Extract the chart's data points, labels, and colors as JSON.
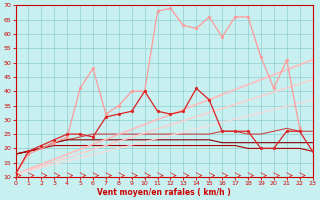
{
  "xlabel": "Vent moyen/en rafales ( km/h )",
  "xlim": [
    0,
    23
  ],
  "ylim": [
    10,
    70
  ],
  "yticks": [
    10,
    15,
    20,
    25,
    30,
    35,
    40,
    45,
    50,
    55,
    60,
    65,
    70
  ],
  "xticks": [
    0,
    1,
    2,
    3,
    4,
    5,
    6,
    7,
    8,
    9,
    10,
    11,
    12,
    13,
    14,
    15,
    16,
    17,
    18,
    19,
    20,
    21,
    22,
    23
  ],
  "bg_color": "#c8f0f0",
  "grid_color": "#90d0d0",
  "series": [
    {
      "x": [
        0,
        1,
        2,
        3,
        4,
        5,
        6,
        7,
        8,
        9,
        10,
        11,
        12,
        13,
        14,
        15,
        16,
        17,
        18,
        19,
        20,
        21,
        22
      ],
      "y": [
        11,
        18,
        20,
        22,
        24,
        41,
        48,
        32,
        35,
        40,
        40,
        68,
        69,
        63,
        62,
        66,
        59,
        66,
        66,
        52,
        41,
        51,
        27
      ],
      "color": "#ff9999",
      "marker": "o",
      "markersize": 2.0,
      "linewidth": 0.9
    },
    {
      "x": [
        0,
        1,
        2,
        3,
        4,
        5,
        6,
        7,
        8,
        9,
        10,
        11,
        12,
        13,
        14,
        15,
        16,
        17,
        18,
        19,
        20,
        21,
        22,
        23
      ],
      "y": [
        11,
        19,
        21,
        23,
        25,
        25,
        24,
        31,
        32,
        33,
        40,
        33,
        32,
        33,
        41,
        37,
        26,
        26,
        26,
        20,
        20,
        26,
        26,
        19
      ],
      "color": "#dd2222",
      "marker": "o",
      "markersize": 2.0,
      "linewidth": 0.9
    },
    {
      "x": [
        0,
        1,
        2,
        3,
        4,
        5,
        6,
        7,
        8,
        9,
        10,
        11,
        12,
        13,
        14,
        15,
        16,
        17,
        18,
        19,
        20,
        21,
        22,
        23
      ],
      "y": [
        18,
        19,
        20,
        22,
        23,
        24,
        25,
        25,
        25,
        25,
        25,
        25,
        25,
        25,
        25,
        25,
        26,
        26,
        25,
        25,
        26,
        27,
        26,
        26
      ],
      "color": "#cc4444",
      "marker": null,
      "markersize": 0,
      "linewidth": 0.8
    },
    {
      "x": [
        0,
        1,
        2,
        3,
        4,
        5,
        6,
        7,
        8,
        9,
        10,
        11,
        12,
        13,
        14,
        15,
        16,
        17,
        18,
        19,
        20,
        21,
        22,
        23
      ],
      "y": [
        18,
        19,
        20,
        22,
        23,
        23,
        23,
        23,
        23,
        23,
        23,
        23,
        23,
        23,
        23,
        23,
        22,
        22,
        22,
        22,
        22,
        22,
        22,
        22
      ],
      "color": "#880000",
      "marker": null,
      "markersize": 0,
      "linewidth": 0.8
    },
    {
      "x": [
        0,
        1,
        2,
        3,
        4,
        5,
        6,
        7,
        8,
        9,
        10,
        11,
        12,
        13,
        14,
        15,
        16,
        17,
        18,
        19,
        20,
        21,
        22,
        23
      ],
      "y": [
        18,
        19,
        20,
        21,
        21,
        21,
        21,
        21,
        21,
        21,
        21,
        21,
        21,
        21,
        21,
        21,
        21,
        21,
        20,
        20,
        20,
        20,
        20,
        19
      ],
      "color": "#aa0000",
      "marker": null,
      "markersize": 0,
      "linewidth": 0.8
    },
    {
      "x": [
        0,
        23
      ],
      "y": [
        11,
        51
      ],
      "color": "#ffbbbb",
      "marker": null,
      "markersize": 0,
      "linewidth": 1.2
    },
    {
      "x": [
        0,
        23
      ],
      "y": [
        11,
        44
      ],
      "color": "#ffcccc",
      "marker": null,
      "markersize": 0,
      "linewidth": 1.0
    },
    {
      "x": [
        0,
        23
      ],
      "y": [
        11,
        37
      ],
      "color": "#ffd8d8",
      "marker": null,
      "markersize": 0,
      "linewidth": 0.8
    }
  ]
}
